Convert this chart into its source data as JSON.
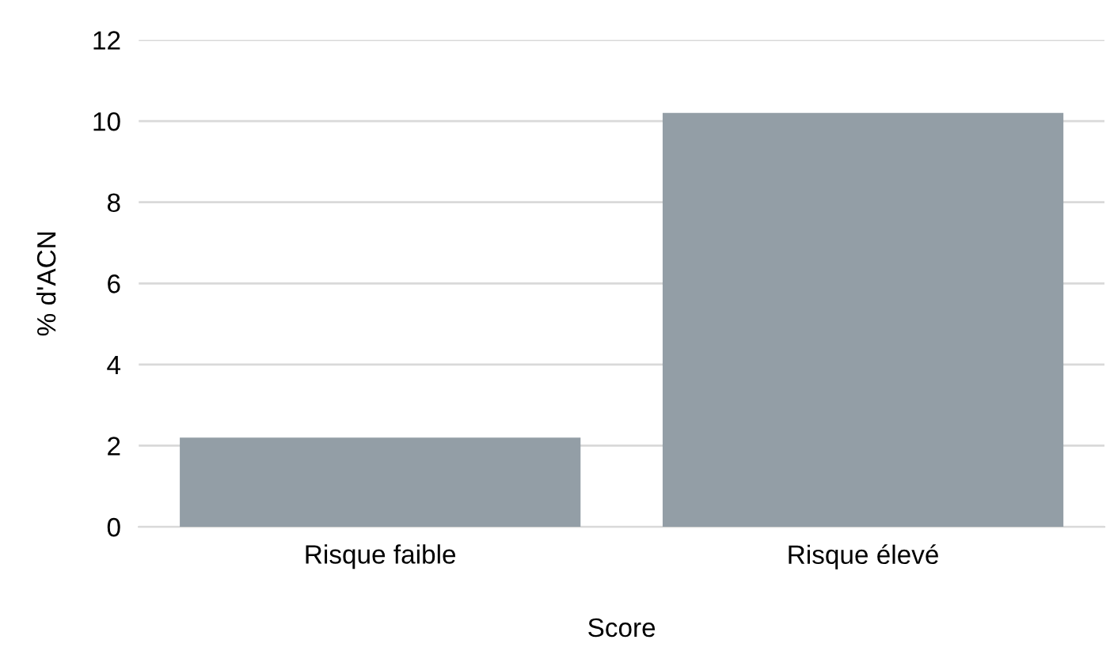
{
  "chart_data": {
    "type": "bar",
    "xlabel": "Score",
    "ylabel": "% d'ACN",
    "categories": [
      "Risque faible",
      "Risque élevé"
    ],
    "values": [
      2.2,
      10.2
    ],
    "color": "#939ea6",
    "ylim": [
      0,
      12
    ],
    "yticks": [
      0,
      2,
      4,
      6,
      8,
      10,
      12
    ],
    "grid": "y",
    "legend": false
  }
}
